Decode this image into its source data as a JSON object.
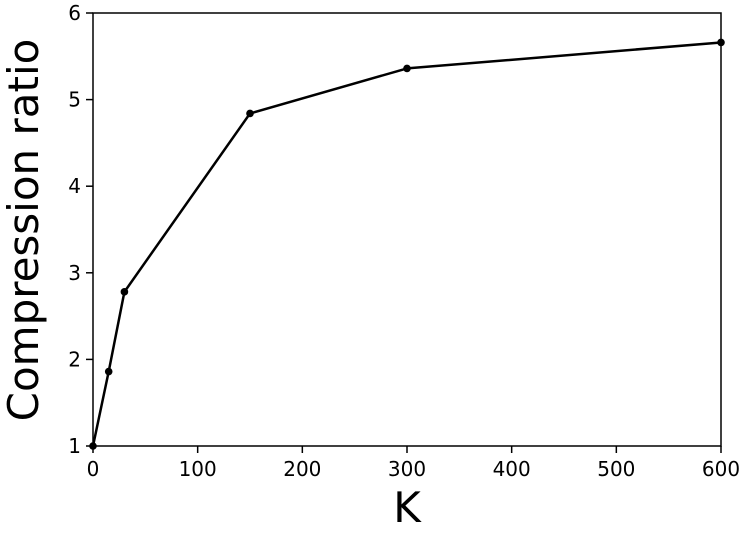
{
  "chart_data": {
    "type": "line",
    "x_label": "K",
    "y_label": "Compression ratio",
    "x": [
      0,
      15,
      30,
      150,
      300,
      600
    ],
    "series": [
      {
        "color": "#000000",
        "values": [
          1.0,
          1.86,
          2.78,
          4.84,
          5.36,
          5.66
        ]
      }
    ],
    "xlim": [
      0,
      600
    ],
    "xticks": [
      0,
      100,
      200,
      300,
      400,
      500,
      600
    ],
    "ylim": [
      1,
      6
    ],
    "yticks": [
      1,
      2,
      3,
      4,
      5,
      6
    ],
    "grid": false
  }
}
